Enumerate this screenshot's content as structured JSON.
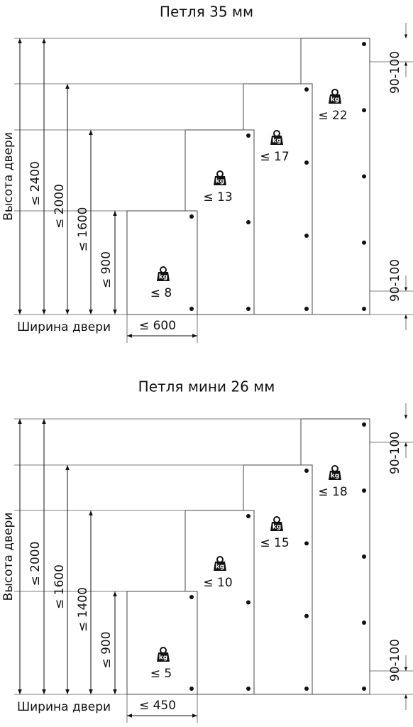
{
  "icon_label": "kg",
  "panels": [
    {
      "title": "Петля 35 мм",
      "y_label": "Высота двери",
      "x_label": "Ширина двери",
      "width_label": "≤ 600",
      "heights": [
        "≤ 2400",
        "≤ 2000",
        "≤ 1600",
        "≤ 900"
      ],
      "weights": [
        "≤ 8",
        "≤ 13",
        "≤ 17",
        "≤ 22"
      ],
      "edge_distances": [
        "90-100",
        "90-100"
      ]
    },
    {
      "title": "Петля мини 26 мм",
      "y_label": "Высота двери",
      "x_label": "Ширина двери",
      "width_label": "≤ 450",
      "heights": [
        "≤ 2000",
        "≤ 1600",
        "≤ 1400",
        "≤ 900"
      ],
      "weights": [
        "≤ 5",
        "≤ 10",
        "≤ 15",
        "≤ 18"
      ],
      "edge_distances": [
        "90-100",
        "90-100"
      ]
    }
  ]
}
